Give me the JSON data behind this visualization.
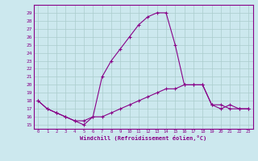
{
  "x_upper": [
    0,
    1,
    2,
    3,
    4,
    5,
    6,
    7,
    8,
    9,
    10,
    11,
    12,
    13,
    14,
    15,
    16,
    17,
    18,
    19,
    20,
    21,
    22,
    23
  ],
  "upper": [
    18,
    17,
    16.5,
    16,
    15.5,
    15,
    16,
    21,
    23,
    24.5,
    26,
    27.5,
    28.5,
    29,
    29,
    25,
    20,
    20,
    20,
    17.5,
    17.5,
    17,
    17,
    17
  ],
  "x_lower": [
    0,
    1,
    2,
    3,
    4,
    5,
    6,
    7,
    8,
    9,
    10,
    11,
    12,
    13,
    14,
    15,
    16,
    17,
    18,
    19,
    20,
    21,
    22,
    23
  ],
  "lower": [
    18,
    17,
    16.5,
    16,
    15.5,
    15.5,
    16,
    16,
    16.5,
    17,
    17.5,
    18,
    18.5,
    19,
    19.5,
    19.5,
    20,
    20,
    20,
    17.5,
    17,
    17.5,
    17,
    17
  ],
  "line_color": "#880088",
  "bg_color": "#cce8ee",
  "grid_color": "#aacccc",
  "xlabel": "Windchill (Refroidissement éolien,°C)",
  "ylim": [
    14.5,
    30.0
  ],
  "xlim": [
    -0.5,
    23.5
  ],
  "yticks": [
    15,
    16,
    17,
    18,
    19,
    20,
    21,
    22,
    23,
    24,
    25,
    26,
    27,
    28,
    29
  ],
  "xticks": [
    0,
    1,
    2,
    3,
    4,
    5,
    6,
    7,
    8,
    9,
    10,
    11,
    12,
    13,
    14,
    15,
    16,
    17,
    18,
    19,
    20,
    21,
    22,
    23
  ]
}
